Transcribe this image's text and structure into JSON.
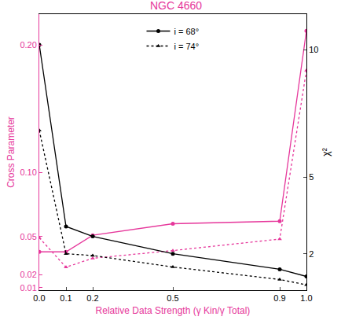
{
  "chart_data": {
    "type": "line",
    "title": "NGC 4660",
    "x_label": "Relative Data Strength (γ Kin/γ Total)",
    "y_label": "Cross Parameter",
    "y2_label": "χ²",
    "x": [
      0,
      0.1,
      0.2,
      0.5,
      0.9,
      1.0
    ],
    "xlim": [
      0,
      1
    ],
    "xticks": [
      {
        "value": 0,
        "label": "0.0"
      },
      0.1,
      0.2,
      0.5,
      0.9,
      {
        "value": 1,
        "label": "1.0"
      }
    ],
    "ylim": [
      0.008,
      0.224
    ],
    "yticks": [
      0.01,
      0.02,
      0.05,
      {
        "value": 0.1,
        "label": "0.10"
      },
      {
        "value": 0.2,
        "label": "0.20"
      }
    ],
    "y2lim": [
      0.57,
      11.4
    ],
    "y2ticks": [
      2,
      5,
      10
    ],
    "grid": false,
    "legend": "top",
    "series": [
      {
        "name": "i = 68°",
        "color": "#e6379b",
        "line_style": "solid",
        "marker": "circle",
        "values": [
          0.038,
          0.038,
          0.051,
          0.06,
          0.062,
          0.211
        ]
      },
      {
        "name": "i = 74°",
        "color": "#e6379b",
        "line_style": "dotted",
        "marker": "triangle",
        "values": [
          0.049,
          0.026,
          0.033,
          0.039,
          0.048,
          0.18
        ]
      },
      {
        "name": "i = 68°",
        "color": "#000000",
        "line_style": "solid",
        "marker": "circle",
        "axis": "y2",
        "values": [
          10.2,
          3.07,
          2.68,
          2.0,
          1.39,
          1.11
        ]
      },
      {
        "name": "i = 74°",
        "color": "#000000",
        "line_style": "dotted",
        "marker": "triangle",
        "axis": "y2",
        "values": [
          6.84,
          2.0,
          1.93,
          1.48,
          0.99,
          0.78
        ]
      }
    ]
  }
}
